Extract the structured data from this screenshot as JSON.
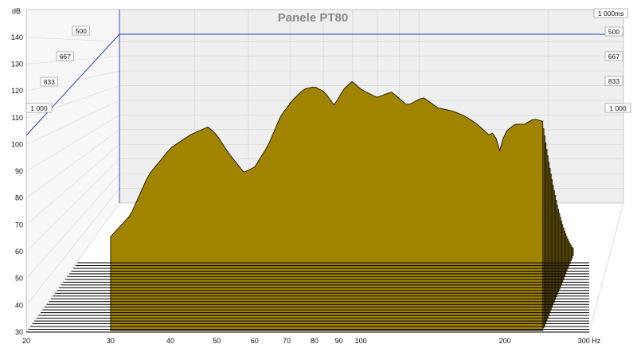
{
  "chart_data": {
    "type": "waterfall",
    "title": "Panele PT80",
    "y_unit": "dB",
    "x_unit": "Hz",
    "x_scale": "log",
    "xlim": [
      20,
      300
    ],
    "ylim": [
      30,
      145
    ],
    "x_ticks": [
      {
        "value": 20,
        "label": "20"
      },
      {
        "value": 30,
        "label": "30"
      },
      {
        "value": 40,
        "label": "40"
      },
      {
        "value": 50,
        "label": "50"
      },
      {
        "value": 60,
        "label": "60"
      },
      {
        "value": 70,
        "label": "70"
      },
      {
        "value": 80,
        "label": "80"
      },
      {
        "value": 90,
        "label": "90"
      },
      {
        "value": 100,
        "label": "100"
      },
      {
        "value": 200,
        "label": "200"
      },
      {
        "value": 300,
        "label": "300 Hz"
      }
    ],
    "y_ticks": [
      {
        "value": 30,
        "label": "30"
      },
      {
        "value": 40,
        "label": "40"
      },
      {
        "value": 50,
        "label": "50"
      },
      {
        "value": 60,
        "label": "60"
      },
      {
        "value": 70,
        "label": "70"
      },
      {
        "value": 80,
        "label": "80"
      },
      {
        "value": 90,
        "label": "90"
      },
      {
        "value": 100,
        "label": "100"
      },
      {
        "value": 110,
        "label": "110"
      },
      {
        "value": 120,
        "label": "120"
      },
      {
        "value": 130,
        "label": "130"
      },
      {
        "value": 140,
        "label": "140"
      }
    ],
    "time_axis_labels_right": [
      "1 000ms",
      "500",
      "667",
      "833",
      "1 000"
    ],
    "time_axis_labels_left": [
      "500",
      "667",
      "833",
      "1 000"
    ],
    "fill_color": "#a08400",
    "outline_color": "#1a1400",
    "slice_count": 30,
    "front_response": [
      [
        30,
        65
      ],
      [
        33,
        73
      ],
      [
        36,
        88
      ],
      [
        40,
        98
      ],
      [
        44,
        103
      ],
      [
        48,
        106
      ],
      [
        50,
        103
      ],
      [
        53,
        96
      ],
      [
        57,
        89
      ],
      [
        60,
        91
      ],
      [
        64,
        99
      ],
      [
        68,
        110
      ],
      [
        72,
        116
      ],
      [
        76,
        120
      ],
      [
        80,
        121
      ],
      [
        84,
        119
      ],
      [
        88,
        114
      ],
      [
        92,
        120
      ],
      [
        96,
        123
      ],
      [
        100,
        120
      ],
      [
        108,
        117
      ],
      [
        116,
        119
      ],
      [
        125,
        114
      ],
      [
        135,
        117
      ],
      [
        145,
        113
      ],
      [
        155,
        112
      ],
      [
        165,
        110
      ],
      [
        175,
        107
      ],
      [
        185,
        103
      ],
      [
        190,
        104
      ],
      [
        195,
        97
      ],
      [
        200,
        104
      ],
      [
        210,
        107
      ],
      [
        220,
        107
      ],
      [
        230,
        109
      ],
      [
        240,
        108
      ]
    ]
  }
}
